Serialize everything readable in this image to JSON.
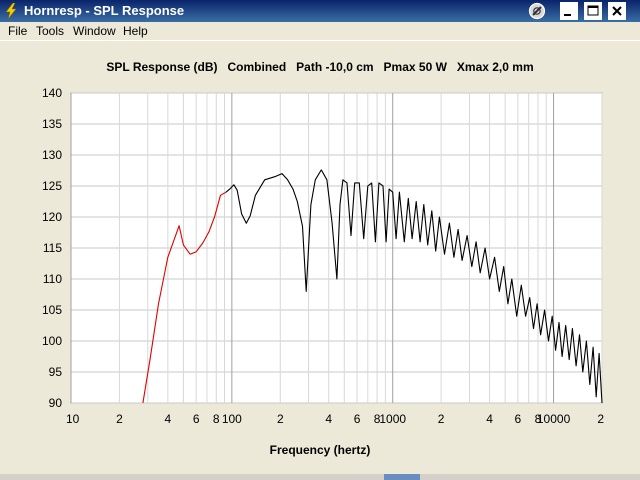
{
  "window": {
    "title": "Hornresp - SPL Response"
  },
  "menu": {
    "items": [
      "File",
      "Tools",
      "Window",
      "Help"
    ]
  },
  "chart_data": {
    "type": "line",
    "title": "SPL Response (dB)   Combined   Path -10,0 cm   Pmax 50 W   Xmax 2,0 mm",
    "xlabel": "Frequency (hertz)",
    "ylabel": "",
    "x_scale": "log",
    "xlim": [
      10,
      20000
    ],
    "ylim": [
      90,
      140
    ],
    "grid": true,
    "y_ticks": [
      140,
      135,
      130,
      125,
      120,
      115,
      110,
      105,
      100,
      95,
      90
    ],
    "x_ticks": [
      {
        "value": 10,
        "label": "10"
      },
      {
        "value": 20,
        "label": "2"
      },
      {
        "value": 40,
        "label": "4"
      },
      {
        "value": 60,
        "label": "6"
      },
      {
        "value": 80,
        "label": "8"
      },
      {
        "value": 100,
        "label": "100"
      },
      {
        "value": 200,
        "label": "2"
      },
      {
        "value": 400,
        "label": "4"
      },
      {
        "value": 600,
        "label": "6"
      },
      {
        "value": 800,
        "label": "8"
      },
      {
        "value": 1000,
        "label": "1000"
      },
      {
        "value": 2000,
        "label": "2"
      },
      {
        "value": 4000,
        "label": "4"
      },
      {
        "value": 6000,
        "label": "6"
      },
      {
        "value": 8000,
        "label": "8"
      },
      {
        "value": 10000,
        "label": "10000"
      },
      {
        "value": 20000,
        "label": "2"
      }
    ],
    "series": [
      {
        "color": "#E00000",
        "x": [
          28,
          31,
          35,
          40,
          44,
          47,
          50,
          55,
          60,
          66,
          72,
          78,
          85,
          92
        ],
        "y": [
          90,
          97,
          106,
          113.5,
          116.5,
          118.6,
          115.5,
          114,
          114.4,
          115.8,
          117.6,
          120,
          123.5,
          124
        ]
      },
      {
        "color": "#000000",
        "x": [
          92,
          97,
          103,
          108,
          115,
          123,
          130,
          140,
          160,
          185,
          205,
          222,
          240,
          255,
          275,
          290,
          310,
          330,
          360,
          390,
          420,
          450,
          470,
          490,
          520,
          550,
          580,
          620,
          660,
          700,
          740,
          780,
          820,
          870,
          910,
          950,
          1000,
          1050,
          1100,
          1180,
          1250,
          1320,
          1400,
          1480,
          1560,
          1650,
          1750,
          1850,
          1950,
          2100,
          2250,
          2400,
          2550,
          2700,
          2900,
          3100,
          3300,
          3500,
          3750,
          4000,
          4300,
          4600,
          4900,
          5200,
          5500,
          5900,
          6300,
          6700,
          7100,
          7500,
          7900,
          8300,
          8800,
          9300,
          9800,
          10300,
          10800,
          11300,
          11900,
          12500,
          13100,
          13800,
          14500,
          15200,
          16000,
          16800,
          17600,
          18400,
          19200,
          20000
        ],
        "y": [
          124,
          124.5,
          125.2,
          124.3,
          120.5,
          119,
          120.2,
          123.5,
          126,
          126.5,
          127,
          126,
          124.5,
          122.5,
          118.5,
          108,
          122,
          126,
          127.6,
          126,
          119,
          110,
          122,
          126,
          125.5,
          117,
          125.5,
          125.5,
          116.5,
          125,
          125.5,
          116,
          125.5,
          125,
          116,
          124.5,
          124,
          116.5,
          124,
          116,
          123,
          116.5,
          122.5,
          116,
          122,
          115.5,
          121,
          114.5,
          120,
          114,
          119,
          113.5,
          118,
          113,
          117,
          112,
          116,
          111,
          115,
          110,
          113.5,
          108,
          112,
          106,
          110,
          104,
          109,
          104,
          107,
          102,
          106,
          101,
          105,
          100,
          104,
          98.5,
          103,
          97.5,
          102.5,
          97,
          102,
          96,
          101,
          95,
          100,
          93,
          99,
          91,
          98,
          90
        ]
      }
    ]
  }
}
